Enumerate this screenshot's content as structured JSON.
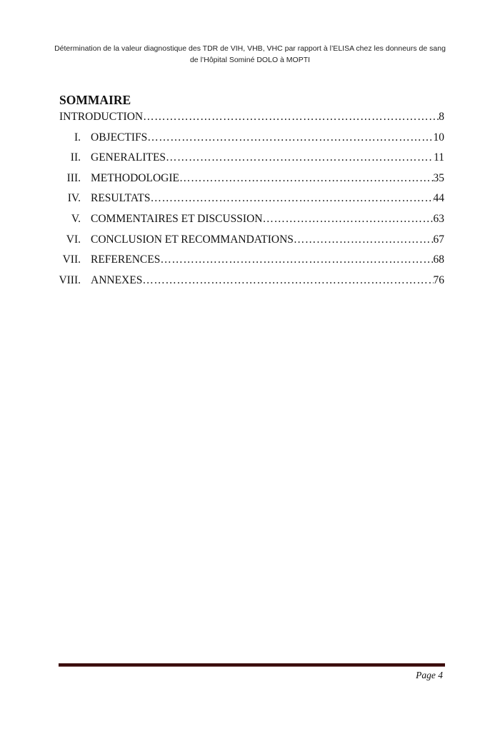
{
  "header": {
    "title": "Détermination de la valeur diagnostique des TDR de VIH, VHB, VHC par rapport à l’ELISA chez les donneurs de sang de l’Hôpital Sominé DOLO à MOPTI"
  },
  "toc": {
    "title": "SOMMAIRE",
    "intro": {
      "label": "INTRODUCTION",
      "page": "8"
    },
    "items": [
      {
        "num": "I.",
        "label": "OBJECTIFS",
        "page": "10"
      },
      {
        "num": "II.",
        "label": "GENERALITES",
        "page": "11"
      },
      {
        "num": "III.",
        "label": "METHODOLOGIE",
        "page": "35"
      },
      {
        "num": "IV.",
        "label": "RESULTATS",
        "page": "44"
      },
      {
        "num": "V.",
        "label": "COMMENTAIRES ET DISCUSSION",
        "page": "63"
      },
      {
        "num": "VI.",
        "label": "CONCLUSION ET RECOMMANDATIONS",
        "page": "67"
      },
      {
        "num": "VII.",
        "label": "REFERENCES",
        "page": "68"
      },
      {
        "num": "VIII.",
        "label": "ANNEXES",
        "page": "76"
      }
    ]
  },
  "footer": {
    "page_label": "Page 4",
    "rule_color": "#3a0c0c"
  }
}
